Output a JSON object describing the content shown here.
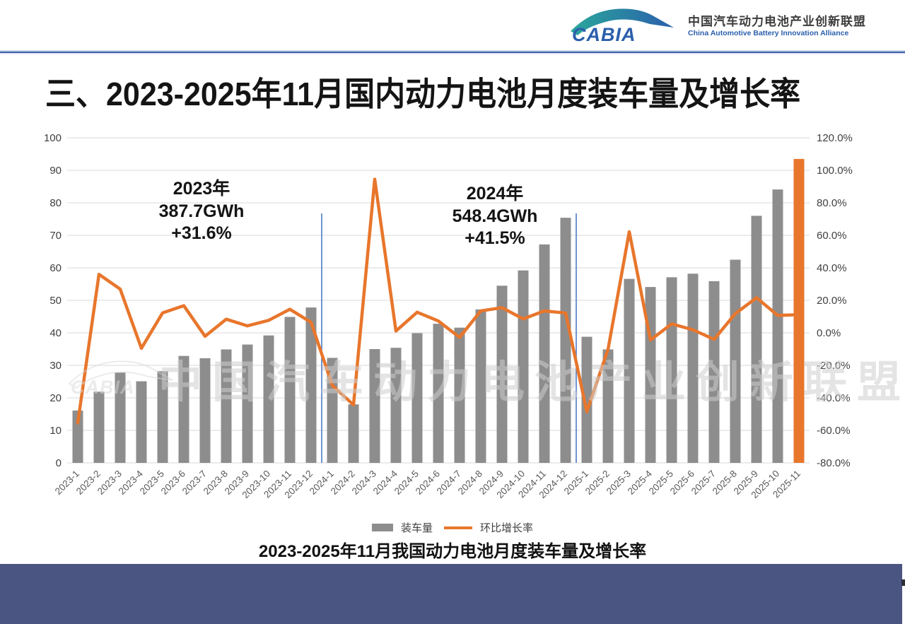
{
  "header": {
    "logo_text": "CABIA",
    "org_name_cn": "中国汽车动力电池产业创新联盟",
    "org_name_en": "China Automotive Battery Innovation Alliance"
  },
  "title": "三、2023-2025年11月国内动力电池月度装车量及增长率",
  "caption": "2023-2025年11月我国动力电池月度装车量及增长率",
  "watermark": {
    "logo_text": "CABIA",
    "text": "中国汽车动力电池产业创新联盟"
  },
  "legend": {
    "bars_label": "装车量",
    "line_label": "环比增长率"
  },
  "annotations": [
    {
      "lines": [
        "2023年",
        "387.7GWh",
        "+31.6%"
      ]
    },
    {
      "lines": [
        "2024年",
        "548.4GWh",
        "+41.5%"
      ]
    }
  ],
  "chart_data": {
    "type": "bar",
    "subtype": "bar+line combo",
    "categories": [
      "2023-1",
      "2023-2",
      "2023-3",
      "2023-4",
      "2023-5",
      "2023-6",
      "2023-7",
      "2023-8",
      "2023-9",
      "2023-10",
      "2023-11",
      "2023-12",
      "2024-1",
      "2024-2",
      "2024-3",
      "2024-4",
      "2024-5",
      "2024-6",
      "2024-7",
      "2024-8",
      "2024-9",
      "2024-10",
      "2024-11",
      "2024-12",
      "2025-1",
      "2025-2",
      "2025-3",
      "2025-4",
      "2025-5",
      "2025-6",
      "2025-7",
      "2025-8",
      "2025-9",
      "2025-10",
      "2025-11"
    ],
    "series": [
      {
        "name": "装车量",
        "type": "bar",
        "unit": "GWh",
        "values": [
          16.1,
          21.9,
          27.8,
          25.1,
          28.2,
          32.9,
          32.2,
          34.9,
          36.4,
          39.2,
          44.9,
          47.8,
          32.3,
          18.0,
          35.0,
          35.4,
          39.9,
          42.8,
          41.6,
          47.2,
          54.5,
          59.2,
          67.2,
          75.4,
          38.8,
          34.9,
          56.6,
          54.1,
          57.1,
          58.2,
          55.9,
          62.5,
          76.0,
          84.1,
          93.5
        ]
      },
      {
        "name": "环比增长率",
        "type": "line",
        "unit": "%",
        "values": [
          -55.4,
          36.0,
          26.9,
          -9.5,
          12.3,
          16.7,
          -2.1,
          8.4,
          4.3,
          7.7,
          14.5,
          6.5,
          -32.4,
          -44.3,
          94.5,
          1.1,
          12.7,
          7.3,
          -2.8,
          13.5,
          15.5,
          8.6,
          13.5,
          12.2,
          -48.5,
          -10.1,
          62.2,
          -4.4,
          5.5,
          1.9,
          -4.0,
          11.8,
          21.6,
          10.7,
          11.2
        ]
      }
    ],
    "left_axis": {
      "min": 0,
      "max": 100,
      "step": 10,
      "ticks": [
        "0",
        "10",
        "20",
        "30",
        "40",
        "50",
        "60",
        "70",
        "80",
        "90",
        "100"
      ]
    },
    "right_axis": {
      "min": -80,
      "max": 120,
      "step": 20,
      "ticks": [
        "-80.0%",
        "-60.0%",
        "-40.0%",
        "-20.0%",
        "0.0%",
        "20.0%",
        "40.0%",
        "60.0%",
        "80.0%",
        "100.0%",
        "120.0%"
      ]
    },
    "grid": true,
    "legend_position": "bottom",
    "highlight_last_bar": true,
    "year_divider_after": [
      "2023-12",
      "2024-12"
    ],
    "colors": {
      "bar": "#8d8d8d",
      "line": "#e8762c",
      "highlight_bar": "#e8762c",
      "grid": "#d9d9d9",
      "year_divider": "#4472c4",
      "axis_label": "#404040",
      "x_label": "#595959",
      "footer": "#4a5581",
      "header_divider": "#3d5da9"
    }
  }
}
